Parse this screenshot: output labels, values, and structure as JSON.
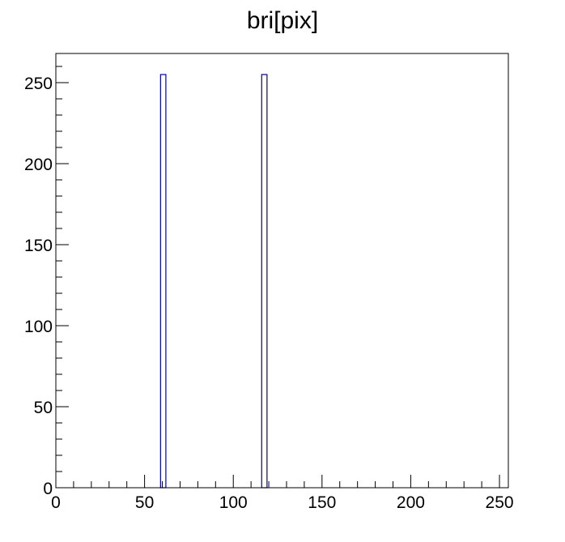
{
  "chart_data": {
    "type": "bar",
    "title": "bri[pix]",
    "xlabel": "",
    "ylabel": "",
    "xlim": [
      0,
      255
    ],
    "ylim": [
      0,
      268
    ],
    "x_ticks": [
      0,
      50,
      100,
      150,
      200,
      250
    ],
    "y_ticks": [
      0,
      50,
      100,
      150,
      200,
      250
    ],
    "x_minor_step": 10,
    "y_minor_step": 10,
    "bin_width": 3,
    "bins": [
      {
        "x0": 59,
        "x1": 62,
        "value": 255
      },
      {
        "x0": 116,
        "x1": 119,
        "value": 255
      }
    ],
    "line_color": "#000099",
    "grid": false,
    "legend": "none"
  }
}
